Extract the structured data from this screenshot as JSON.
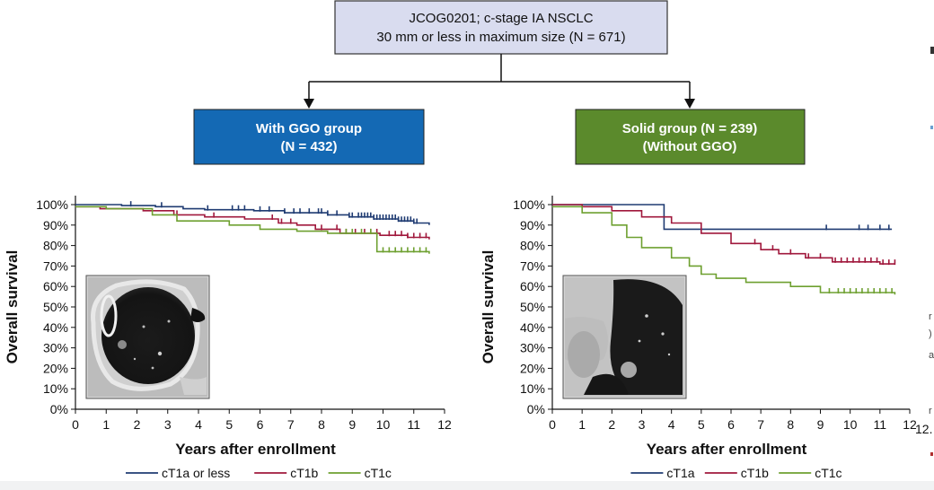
{
  "flow": {
    "top_line1": "JCOG0201; c-stage IA NSCLC",
    "top_line2": "30 mm or less in maximum size (N = 671)",
    "left_line1": "With GGO group",
    "left_line2": "(N = 432)",
    "right_line1": "Solid group (N = 239)",
    "right_line2": "(Without GGO)",
    "colors": {
      "top_fill": "#d9dcef",
      "left_fill": "#1469b4",
      "right_fill": "#5b8a2c"
    }
  },
  "margin_glyphs": [
    "r",
    ")",
    "a",
    "r",
    "12."
  ],
  "chart_data": [
    {
      "type": "line",
      "name": "with-ggo",
      "xlabel": "Years after enrollment",
      "ylabel": "Overall survival",
      "xlim": [
        0,
        12
      ],
      "ylim": [
        0,
        100
      ],
      "x_ticks": [
        "0",
        "1",
        "2",
        "3",
        "4",
        "5",
        "6",
        "7",
        "8",
        "9",
        "10",
        "11",
        "12"
      ],
      "y_ticks": [
        "0%",
        "10%",
        "20%",
        "30%",
        "40%",
        "50%",
        "60%",
        "70%",
        "80%",
        "90%",
        "100%"
      ],
      "grid": false,
      "legend_position": "bottom",
      "series": [
        {
          "name": "cT1a or less",
          "color": "#1f3b72",
          "points": [
            [
              0,
              100
            ],
            [
              1.2,
              100
            ],
            [
              1.5,
              99.5
            ],
            [
              2.6,
              99
            ],
            [
              3.5,
              98
            ],
            [
              4.2,
              97.5
            ],
            [
              5.8,
              97
            ],
            [
              6.8,
              96
            ],
            [
              8.2,
              95
            ],
            [
              8.9,
              94
            ],
            [
              9.7,
              93
            ],
            [
              10.5,
              92
            ],
            [
              11,
              91
            ],
            [
              11.5,
              90
            ]
          ],
          "censors": [
            1.8,
            2.8,
            4.3,
            5.1,
            5.3,
            5.5,
            6.0,
            6.3,
            6.8,
            7.1,
            7.3,
            7.6,
            7.9,
            8.0,
            8.2,
            8.5,
            8.9,
            9.0,
            9.2,
            9.3,
            9.4,
            9.5,
            9.6,
            9.7,
            9.8,
            9.9,
            10.0,
            10.1,
            10.2,
            10.3,
            10.4,
            10.5,
            10.6,
            10.7,
            10.8,
            10.9,
            11.0,
            11.1
          ]
        },
        {
          "name": "cT1b",
          "color": "#a0183c",
          "points": [
            [
              0,
              99
            ],
            [
              0.8,
              98
            ],
            [
              2.2,
              97
            ],
            [
              3.2,
              95
            ],
            [
              4.2,
              94
            ],
            [
              5.5,
              93
            ],
            [
              6.6,
              91
            ],
            [
              7.2,
              90
            ],
            [
              7.8,
              88
            ],
            [
              8.6,
              86
            ],
            [
              9.3,
              86
            ],
            [
              9.9,
              85
            ],
            [
              10.8,
              84
            ],
            [
              11.5,
              83
            ]
          ],
          "censors": [
            3.3,
            4.5,
            6.4,
            6.7,
            7.0,
            8.0,
            8.5,
            8.8,
            9.1,
            9.4,
            9.6,
            9.8,
            10.2,
            10.4,
            10.6,
            10.8,
            11.0,
            11.2,
            11.4
          ]
        },
        {
          "name": "cT1c",
          "color": "#6ea030",
          "points": [
            [
              0,
              99
            ],
            [
              1,
              98
            ],
            [
              2.5,
              95
            ],
            [
              3.3,
              92
            ],
            [
              5,
              90
            ],
            [
              6,
              88
            ],
            [
              7.2,
              87
            ],
            [
              8.2,
              86
            ],
            [
              9.5,
              86
            ],
            [
              9.8,
              77
            ],
            [
              11.5,
              76
            ]
          ],
          "censors": [
            8.8,
            9.0,
            9.3,
            9.6,
            10.0,
            10.2,
            10.4,
            10.6,
            10.8,
            11.0,
            11.2,
            11.4
          ]
        }
      ]
    },
    {
      "type": "line",
      "name": "solid",
      "xlabel": "Years after enrollment",
      "ylabel": "Overall survival",
      "xlim": [
        0,
        12
      ],
      "ylim": [
        0,
        100
      ],
      "x_ticks": [
        "0",
        "1",
        "2",
        "3",
        "4",
        "5",
        "6",
        "7",
        "8",
        "9",
        "10",
        "11",
        "12"
      ],
      "y_ticks": [
        "0%",
        "10%",
        "20%",
        "30%",
        "40%",
        "50%",
        "60%",
        "70%",
        "80%",
        "90%",
        "100%"
      ],
      "grid": false,
      "legend_position": "bottom",
      "series": [
        {
          "name": "cT1a",
          "color": "#1f3b72",
          "points": [
            [
              0,
              100
            ],
            [
              3.75,
              100
            ],
            [
              3.75,
              88
            ],
            [
              11.4,
              88
            ]
          ],
          "censors": [
            9.2,
            10.3,
            10.6,
            11.0,
            11.3
          ]
        },
        {
          "name": "cT1b",
          "color": "#a0183c",
          "points": [
            [
              0,
              100
            ],
            [
              1,
              99
            ],
            [
              2,
              97
            ],
            [
              3,
              94
            ],
            [
              4,
              91
            ],
            [
              5,
              86
            ],
            [
              6,
              81
            ],
            [
              7,
              78
            ],
            [
              7.6,
              76
            ],
            [
              8.5,
              74
            ],
            [
              9.4,
              72
            ],
            [
              10.3,
              72
            ],
            [
              11,
              71
            ],
            [
              11.5,
              71
            ]
          ],
          "censors": [
            6.8,
            7.4,
            8.0,
            8.6,
            9.0,
            9.5,
            9.7,
            9.9,
            10.1,
            10.3,
            10.5,
            10.7,
            10.9,
            11.1,
            11.3,
            11.5
          ]
        },
        {
          "name": "cT1c",
          "color": "#6ea030",
          "points": [
            [
              0,
              99
            ],
            [
              1,
              96
            ],
            [
              2,
              90
            ],
            [
              2.5,
              84
            ],
            [
              3,
              79
            ],
            [
              4,
              74
            ],
            [
              4.6,
              70
            ],
            [
              5,
              66
            ],
            [
              5.5,
              64
            ],
            [
              6.5,
              62
            ],
            [
              8,
              60
            ],
            [
              9,
              57
            ],
            [
              9.5,
              57
            ],
            [
              11.5,
              56
            ]
          ],
          "censors": [
            9.3,
            9.6,
            9.8,
            10.0,
            10.2,
            10.4,
            10.6,
            10.8,
            11.0,
            11.2,
            11.4
          ]
        }
      ]
    }
  ]
}
